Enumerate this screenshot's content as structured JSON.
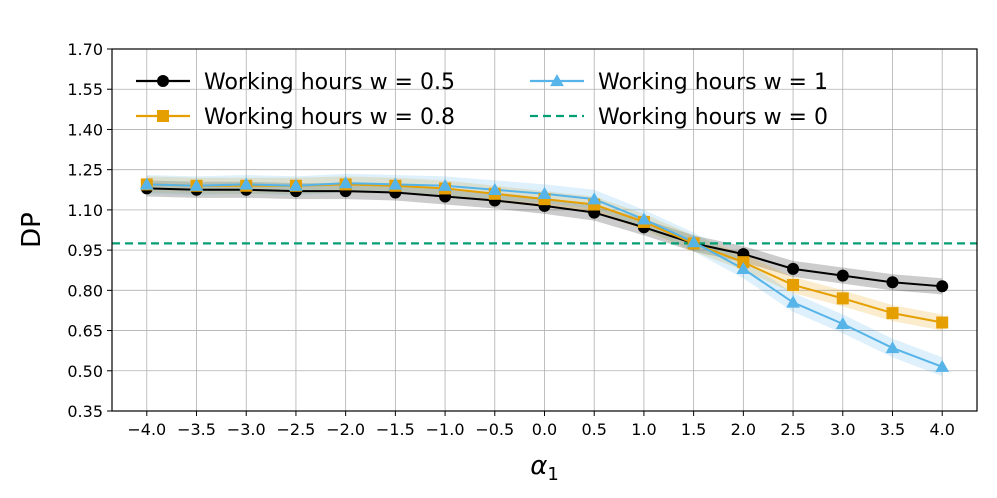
{
  "chart_data": {
    "type": "line",
    "title": "",
    "xlabel_base": "α",
    "xlabel_sub": "1",
    "ylabel": "DP",
    "xlim": [
      -4.35,
      4.35
    ],
    "ylim": [
      0.35,
      1.7
    ],
    "x": [
      -4.0,
      -3.5,
      -3.0,
      -2.5,
      -2.0,
      -1.5,
      -1.0,
      -0.5,
      0.0,
      0.5,
      1.0,
      1.5,
      2.0,
      2.5,
      3.0,
      3.5,
      4.0
    ],
    "x_tick_labels": [
      "−4.0",
      "−3.5",
      "−3.0",
      "−2.5",
      "−2.0",
      "−1.5",
      "−1.0",
      "−0.5",
      "0.0",
      "0.5",
      "1.0",
      "1.5",
      "2.0",
      "2.5",
      "3.0",
      "3.5",
      "4.0"
    ],
    "y_ticks": [
      0.35,
      0.5,
      0.65,
      0.8,
      0.95,
      1.1,
      1.25,
      1.4,
      1.55,
      1.7
    ],
    "y_tick_labels": [
      "0.35",
      "0.50",
      "0.65",
      "0.80",
      "0.95",
      "1.10",
      "1.25",
      "1.40",
      "1.55",
      "1.70"
    ],
    "grid": true,
    "legend_position": "top-left",
    "series": [
      {
        "name": "Working hours w = 0.5",
        "color": "#000000",
        "marker": "circle",
        "values": [
          1.18,
          1.175,
          1.175,
          1.17,
          1.17,
          1.165,
          1.15,
          1.135,
          1.115,
          1.09,
          1.035,
          0.975,
          0.935,
          0.88,
          0.855,
          0.83,
          0.815
        ],
        "band": 0.03
      },
      {
        "name": "Working hours w = 0.8",
        "color": "#E69F00",
        "marker": "square",
        "values": [
          1.195,
          1.19,
          1.19,
          1.19,
          1.195,
          1.19,
          1.18,
          1.16,
          1.14,
          1.12,
          1.055,
          0.975,
          0.905,
          0.82,
          0.77,
          0.715,
          0.68
        ],
        "band": 0.03
      },
      {
        "name": "Working hours w = 1",
        "color": "#56B4E9",
        "marker": "triangle",
        "values": [
          1.195,
          1.19,
          1.195,
          1.19,
          1.2,
          1.195,
          1.19,
          1.175,
          1.16,
          1.14,
          1.065,
          0.98,
          0.88,
          0.755,
          0.675,
          0.585,
          0.515
        ],
        "band": 0.035
      },
      {
        "name": "Working hours w = 0",
        "color": "#009E73",
        "marker": "none",
        "dashed": true,
        "constant": 0.975
      }
    ]
  }
}
